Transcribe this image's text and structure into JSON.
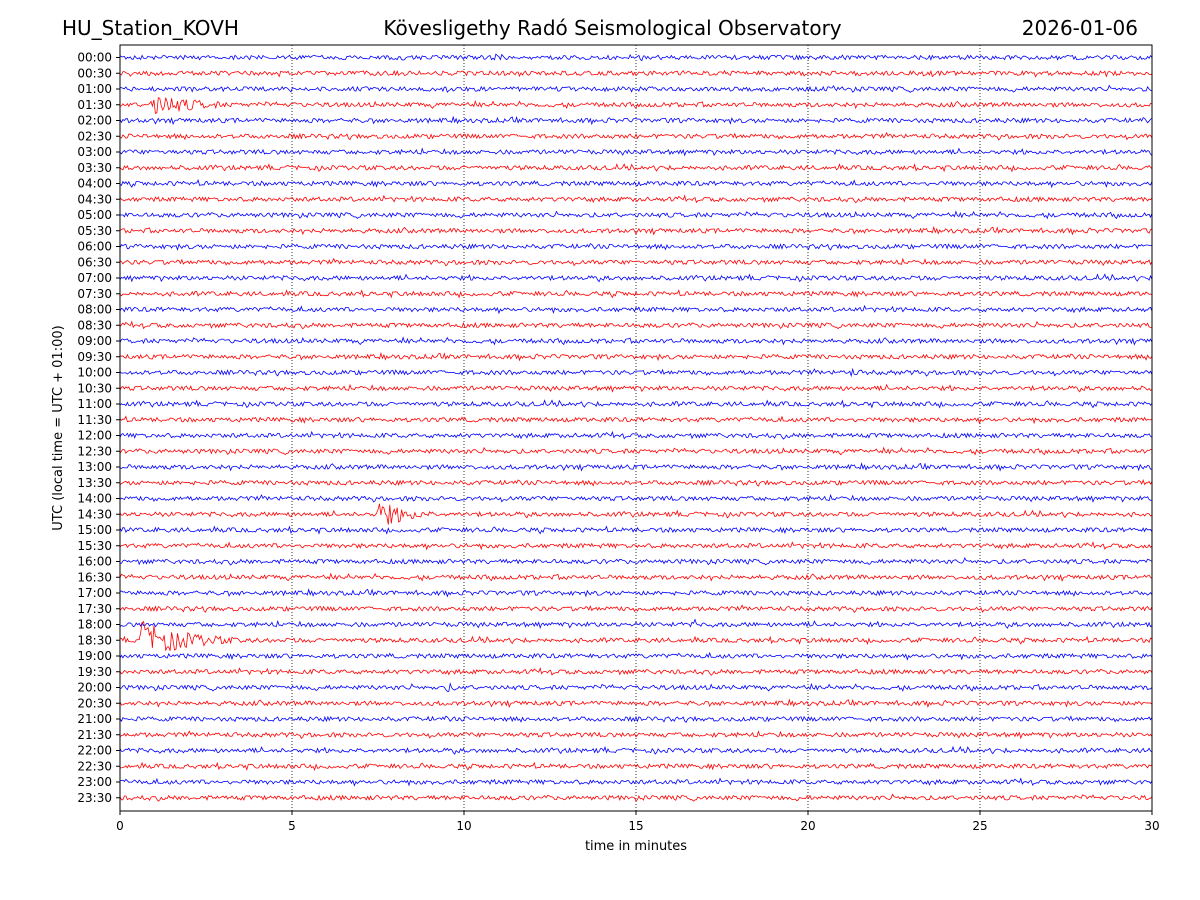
{
  "header": {
    "station": "HU_Station_KOVH",
    "title": "Kövesligethy Radó Seismological Observatory",
    "date": "2026-01-06"
  },
  "chart_data": {
    "type": "line",
    "title": "Kövesligethy Radó Seismological Observatory",
    "xlabel": "time in minutes",
    "ylabel": "UTC (local time = UTC + 01:00)",
    "xlim": [
      0,
      30
    ],
    "x_ticks": [
      0,
      5,
      10,
      15,
      20,
      25,
      30
    ],
    "grid": "vertical dotted at x ticks",
    "trace_colors": [
      "#0000ff",
      "#ff0000"
    ],
    "rows": [
      "00:00",
      "00:30",
      "01:00",
      "01:30",
      "02:00",
      "02:30",
      "03:00",
      "03:30",
      "04:00",
      "04:30",
      "05:00",
      "05:30",
      "06:00",
      "06:30",
      "07:00",
      "07:30",
      "08:00",
      "08:30",
      "09:00",
      "09:30",
      "10:00",
      "10:30",
      "11:00",
      "11:30",
      "12:00",
      "12:30",
      "13:00",
      "13:30",
      "14:00",
      "14:30",
      "15:00",
      "15:30",
      "16:00",
      "16:30",
      "17:00",
      "17:30",
      "18:00",
      "18:30",
      "19:00",
      "19:30",
      "20:00",
      "20:30",
      "21:00",
      "21:30",
      "22:00",
      "22:30",
      "23:00",
      "23:30"
    ],
    "events": [
      {
        "row": "01:30",
        "start_min": 0.9,
        "duration_min": 4.5,
        "amplitude": 12
      },
      {
        "row": "10:00",
        "start_min": 21.2,
        "duration_min": 1.3,
        "amplitude": 5
      },
      {
        "row": "14:30",
        "start_min": 7.5,
        "duration_min": 3.0,
        "amplitude": 15
      },
      {
        "row": "15:00",
        "start_min": 1.0,
        "duration_min": 1.5,
        "amplitude": 3
      },
      {
        "row": "18:00",
        "start_min": 16.7,
        "duration_min": 0.4,
        "amplitude": 6
      },
      {
        "row": "18:30",
        "start_min": 0.6,
        "duration_min": 4.5,
        "amplitude": 20
      },
      {
        "row": "19:00",
        "start_min": 25.0,
        "duration_min": 3.0,
        "amplitude": 4
      },
      {
        "row": "20:00",
        "start_min": 9.5,
        "duration_min": 1.6,
        "amplitude": 5
      }
    ]
  }
}
